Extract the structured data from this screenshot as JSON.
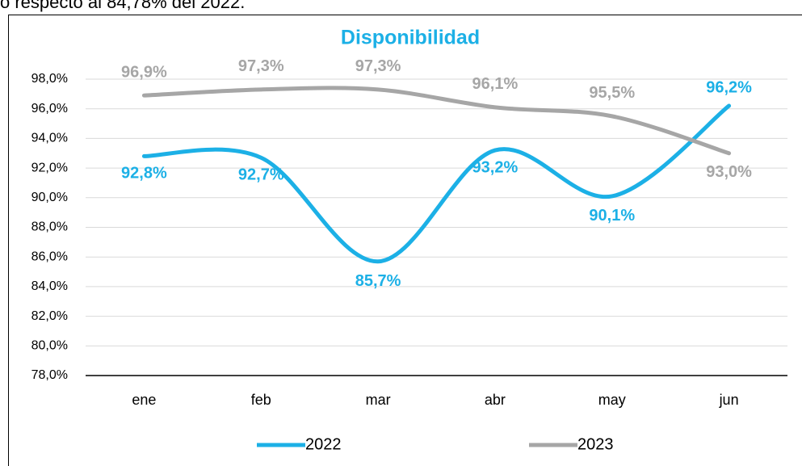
{
  "caption": "o respecto al 84,78% del 2022.",
  "chart_data": {
    "type": "line",
    "title": "Disponibilidad",
    "categories": [
      "ene",
      "feb",
      "mar",
      "abr",
      "may",
      "jun"
    ],
    "series": [
      {
        "name": "2022",
        "color": "#1cb0e6",
        "values": [
          92.8,
          92.7,
          85.7,
          93.2,
          90.1,
          96.2
        ],
        "value_labels": [
          "92,8%",
          "92,7%",
          "85,7%",
          "93,2%",
          "90,1%",
          "96,2%"
        ]
      },
      {
        "name": "2023",
        "color": "#a6a6a6",
        "values": [
          96.9,
          97.3,
          97.3,
          96.1,
          95.5,
          93.0
        ],
        "value_labels": [
          "96,9%",
          "97,3%",
          "97,3%",
          "96,1%",
          "95,5%",
          "93,0%"
        ]
      }
    ],
    "ylim": [
      78,
      98
    ],
    "yticks": [
      {
        "value": 78,
        "label": "78,0%"
      },
      {
        "value": 80,
        "label": "80,0%"
      },
      {
        "value": 82,
        "label": "82,0%"
      },
      {
        "value": 84,
        "label": "84,0%"
      },
      {
        "value": 86,
        "label": "86,0%"
      },
      {
        "value": 88,
        "label": "88,0%"
      },
      {
        "value": 90,
        "label": "90,0%"
      },
      {
        "value": 92,
        "label": "92,0%"
      },
      {
        "value": 94,
        "label": "94,0%"
      },
      {
        "value": 96,
        "label": "96,0%"
      },
      {
        "value": 98,
        "label": "98,0%"
      }
    ],
    "grid": true,
    "smooth": true,
    "legend": "bottom"
  }
}
